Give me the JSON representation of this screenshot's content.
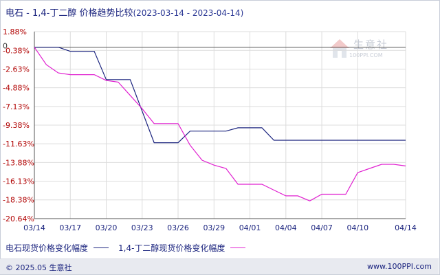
{
  "header": {
    "title": "电石 - 1,4-丁二醇 价格趋势比较",
    "date_range": "(2023-03-14 - 2023-04-14)"
  },
  "watermark": {
    "name": "生意社",
    "site": "100PPI.COM"
  },
  "footer": {
    "copyright": "© 2025.05 生意社",
    "site": "www.100PPI.com"
  },
  "colors": {
    "series1": "#1a237e",
    "series2": "#e020d0",
    "negative_tick": "#b00000",
    "grid": "#dcdcdc"
  },
  "chart_data": {
    "type": "line",
    "xlabel": "",
    "ylabel": "",
    "y_ticks": [
      "1.88%",
      "-0.38%",
      "-2.63%",
      "-4.88%",
      "-7.13%",
      "-9.38%",
      "-11.63%",
      "-13.88%",
      "-16.13%",
      "-18.38%",
      "-20.64%"
    ],
    "y_tick_values": [
      1.88,
      -0.38,
      -2.63,
      -4.88,
      -7.13,
      -9.38,
      -11.63,
      -13.88,
      -16.13,
      -18.38,
      -20.64
    ],
    "zero_label": "0",
    "ylim": [
      -20.64,
      1.88
    ],
    "x_ticks": [
      "03/14",
      "03/17",
      "03/20",
      "03/23",
      "03/26",
      "03/29",
      "04/01",
      "04/04",
      "04/07",
      "04/10",
      "04/14"
    ],
    "x_tick_days": [
      0,
      3,
      6,
      9,
      12,
      15,
      18,
      21,
      24,
      27,
      31
    ],
    "xlim": [
      0,
      31
    ],
    "grid": true,
    "legend_position": "bottom",
    "series": [
      {
        "name": "电石现货价格变化幅度",
        "points": [
          [
            0,
            0
          ],
          [
            2,
            0
          ],
          [
            3,
            -0.5
          ],
          [
            5,
            -0.5
          ],
          [
            6,
            -3.9
          ],
          [
            8,
            -3.9
          ],
          [
            10,
            -11.5
          ],
          [
            12,
            -11.5
          ],
          [
            13,
            -10.1
          ],
          [
            16,
            -10.1
          ],
          [
            17,
            -9.7
          ],
          [
            19,
            -9.7
          ],
          [
            20,
            -11.2
          ],
          [
            31,
            -11.2
          ]
        ]
      },
      {
        "name": "1,4-丁二醇现货价格变化幅度",
        "points": [
          [
            0,
            0
          ],
          [
            1,
            -2.1
          ],
          [
            2,
            -3.1
          ],
          [
            3,
            -3.3
          ],
          [
            5,
            -3.3
          ],
          [
            6,
            -4.0
          ],
          [
            7,
            -4.2
          ],
          [
            8,
            -5.8
          ],
          [
            9,
            -7.4
          ],
          [
            10,
            -9.2
          ],
          [
            12,
            -9.2
          ],
          [
            13,
            -11.8
          ],
          [
            14,
            -13.6
          ],
          [
            15,
            -14.2
          ],
          [
            16,
            -14.6
          ],
          [
            17,
            -16.5
          ],
          [
            19,
            -16.5
          ],
          [
            20,
            -17.2
          ],
          [
            21,
            -17.9
          ],
          [
            22,
            -17.9
          ],
          [
            23,
            -18.5
          ],
          [
            24,
            -17.7
          ],
          [
            26,
            -17.7
          ],
          [
            27,
            -15.1
          ],
          [
            28,
            -14.6
          ],
          [
            29,
            -14.1
          ],
          [
            30,
            -14.1
          ],
          [
            31,
            -14.3
          ]
        ]
      }
    ]
  }
}
